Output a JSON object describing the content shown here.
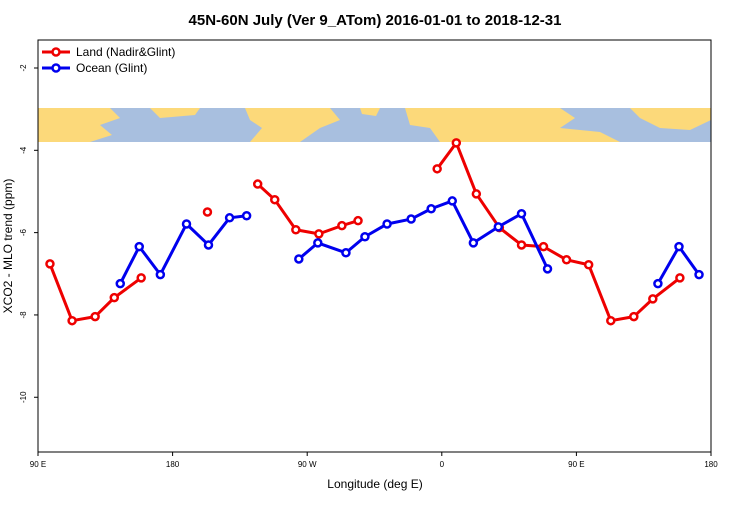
{
  "chart_data": {
    "type": "line",
    "title": "45N-60N July (Ver 9_ATom)   2016-01-01 to 2018-12-31",
    "x_label": "Longitude (deg E)",
    "y_label": "XCO2 - MLO trend (ppm)",
    "xlim": [
      90,
      540
    ],
    "ylim": [
      -11.33,
      -1.32
    ],
    "xticks": [
      {
        "value": 90,
        "label": "90 E"
      },
      180,
      {
        "value": 270,
        "label": "90 W"
      },
      {
        "value": 360,
        "label": "0"
      },
      {
        "value": 450,
        "label": "90 E"
      },
      {
        "value": 540,
        "label": "180"
      }
    ],
    "yticks": [
      -2,
      -4,
      -6,
      -8,
      -10
    ],
    "legend": "top-left",
    "series": [
      {
        "name": "Land (Nadir&Glint)",
        "color": "#ee0000",
        "x": [
          98,
          112.8,
          128.2,
          141,
          159,
          181,
          203.3,
          220,
          236.9,
          248.3,
          262.4,
          277.8,
          293.2,
          304,
          330,
          356.9,
          369.7,
          383.1,
          398.5,
          413.3,
          428,
          443.4,
          458.2,
          473,
          488.4,
          501.1,
          519.2
        ],
        "values": [
          -6.76,
          -8.14,
          -8.04,
          -7.58,
          -7.1,
          null,
          -5.5,
          null,
          -4.82,
          -5.2,
          -5.93,
          -6.03,
          -5.83,
          -5.71,
          null,
          -4.45,
          -3.82,
          -5.06,
          -5.88,
          -6.3,
          -6.34,
          -6.66,
          -6.78,
          -8.14,
          -8.04,
          -7.61,
          -7.1
        ]
      },
      {
        "name": "Ocean (Glint)",
        "color": "#0000ee",
        "x": [
          145,
          157.7,
          171.8,
          189.3,
          204,
          218.1,
          229.5,
          247,
          264.4,
          277.1,
          295.9,
          308.6,
          323.4,
          339.5,
          352.9,
          367,
          381.1,
          397.8,
          413.3,
          430.7,
          467,
          504.5,
          518.6,
          532
        ],
        "values": [
          -7.24,
          -6.34,
          -7.02,
          -5.79,
          -6.3,
          -5.64,
          -5.59,
          null,
          -6.64,
          -6.25,
          -6.49,
          -6.1,
          -5.79,
          -5.67,
          -5.42,
          -5.23,
          -6.25,
          -5.86,
          -5.54,
          -6.88,
          null,
          -7.24,
          -6.34,
          -7.02
        ]
      }
    ]
  }
}
